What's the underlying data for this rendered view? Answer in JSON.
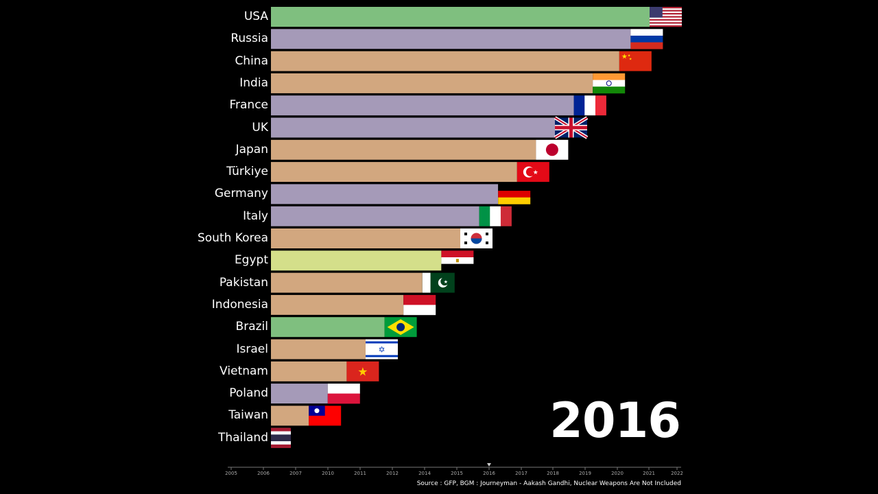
{
  "chart_data": {
    "type": "bar",
    "orientation": "horizontal",
    "year": "2016",
    "source": "Source : GFP, BGM : Journeyman - Aakash Gandhi, Nuclear Weapons Are Not Included",
    "timeline": {
      "years": [
        "2005",
        "2006",
        "2007",
        "2010",
        "2011",
        "2012",
        "2014",
        "2015",
        "2016",
        "2017",
        "2018",
        "2019",
        "2020",
        "2021",
        "2022"
      ],
      "current": "2016"
    },
    "categories": [
      "USA",
      "Russia",
      "China",
      "India",
      "France",
      "UK",
      "Japan",
      "Türkiye",
      "Germany",
      "Italy",
      "South Korea",
      "Egypt",
      "Pakistan",
      "Indonesia",
      "Brazil",
      "Israel",
      "Vietnam",
      "Poland",
      "Taiwan",
      "Thailand"
    ],
    "values": [
      100,
      95,
      92,
      85,
      80,
      75,
      70,
      65,
      60,
      55,
      50,
      45,
      40,
      35,
      30,
      25,
      20,
      15,
      10,
      5
    ],
    "bar_colors": [
      "#7fbf7f",
      "#a59ab8",
      "#d2a77f",
      "#d2a77f",
      "#a59ab8",
      "#a59ab8",
      "#d2a77f",
      "#d2a77f",
      "#a59ab8",
      "#a59ab8",
      "#d2a77f",
      "#d4df8a",
      "#d2a77f",
      "#d2a77f",
      "#7fbf7f",
      "#d2a77f",
      "#d2a77f",
      "#a59ab8",
      "#d2a77f",
      "#d2a77f"
    ],
    "flag_icons": [
      "usa-flag-icon",
      "russia-flag-icon",
      "china-flag-icon",
      "india-flag-icon",
      "france-flag-icon",
      "uk-flag-icon",
      "japan-flag-icon",
      "turkiye-flag-icon",
      "germany-flag-icon",
      "italy-flag-icon",
      "south-korea-flag-icon",
      "egypt-flag-icon",
      "pakistan-flag-icon",
      "indonesia-flag-icon",
      "brazil-flag-icon",
      "israel-flag-icon",
      "vietnam-flag-icon",
      "poland-flag-icon",
      "taiwan-flag-icon",
      "thailand-flag-icon"
    ],
    "title": "",
    "xlabel": "",
    "ylabel": "",
    "grid": false,
    "legend": "none"
  }
}
